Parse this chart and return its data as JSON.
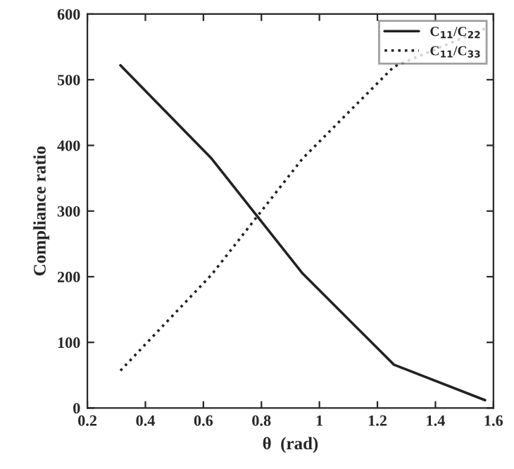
{
  "chart_data": {
    "type": "line",
    "xlabel": "θ  (rad)",
    "ylabel": "Compliance ratio",
    "x": [
      0.314,
      0.628,
      0.942,
      1.257,
      1.571
    ],
    "series": [
      {
        "name": "C$_{11}$/C$_{22}$",
        "color": "#222222",
        "values": [
          522,
          380,
          205,
          66,
          12
        ],
        "line_style": "solid"
      },
      {
        "name": "C$_{11}$/C$_{33}$",
        "color": "#222222",
        "values": [
          57,
          203,
          380,
          520,
          578
        ],
        "line_style": "dotted"
      }
    ],
    "xlim": [
      0.2,
      1.6
    ],
    "xticks": [
      0.2,
      0.4,
      0.6,
      0.8,
      1,
      1.2,
      1.4,
      1.6
    ],
    "ylim": [
      0,
      600
    ],
    "yticks": [
      0,
      100,
      200,
      300,
      400,
      500,
      600
    ],
    "grid": false,
    "legend": "top right"
  }
}
